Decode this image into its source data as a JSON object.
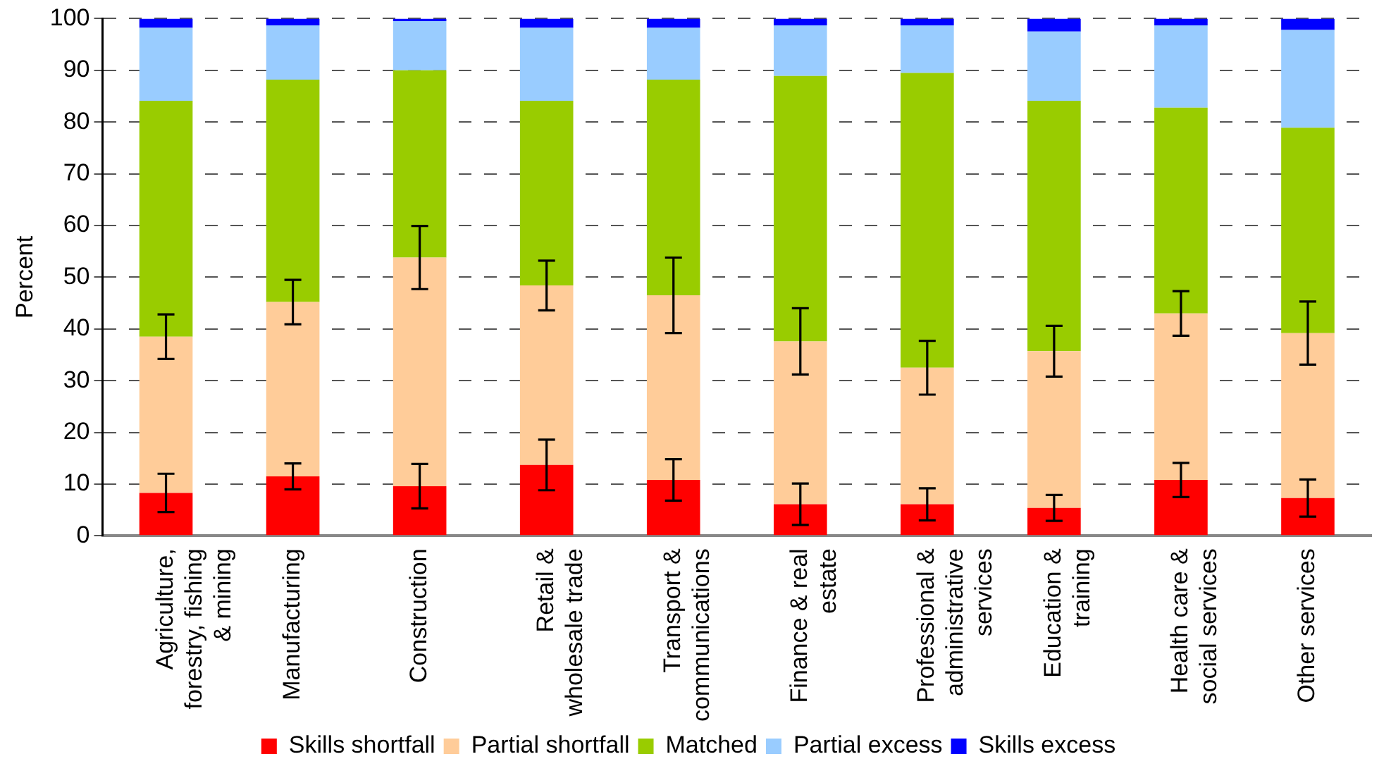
{
  "chart_data": {
    "type": "bar",
    "stacked": true,
    "ylabel": "Percent",
    "categories": [
      "Agriculture, forestry, fishing & mining",
      "Manufacturing",
      "Construction",
      "Retail & wholesale trade",
      "Transport & communications",
      "Finance & real estate",
      "Professional & administrative services",
      "Education & training",
      "Health care & social services",
      "Other services"
    ],
    "series": [
      {
        "name": "Skills shortfall",
        "color": "#ff0000",
        "values": [
          8.3,
          11.5,
          9.6,
          13.7,
          10.8,
          6.1,
          6.1,
          5.4,
          10.8,
          7.3
        ],
        "errors": [
          3.7,
          2.5,
          4.3,
          4.9,
          4,
          4,
          3.1,
          2.5,
          3.3,
          3.6
        ]
      },
      {
        "name": "Partial shortfall",
        "color": "#ffcc99",
        "values": [
          30.2,
          33.7,
          44.2,
          34.7,
          35.7,
          31.5,
          26.4,
          30.3,
          32.2,
          31.9
        ],
        "errors": [
          4.3,
          4.3,
          6.1,
          4.8,
          7.3,
          6.4,
          5.2,
          4.9,
          4.3,
          6.1
        ]
      },
      {
        "name": "Matched",
        "color": "#99cc00",
        "values": [
          45.6,
          43.0,
          36.2,
          35.7,
          41.7,
          51.3,
          57.0,
          48.4,
          39.8,
          39.7
        ]
      },
      {
        "name": "Partial excess",
        "color": "#99ccff",
        "values": [
          14.1,
          10.5,
          9.5,
          14.1,
          10.0,
          9.8,
          9.2,
          13.4,
          15.9,
          18.9
        ]
      },
      {
        "name": "Skills excess",
        "color": "#0000ff",
        "values": [
          1.8,
          1.3,
          0.5,
          1.8,
          1.8,
          1.3,
          1.3,
          2.5,
          1.3,
          2.2
        ]
      }
    ],
    "ylim": [
      0,
      100
    ],
    "yticks": [
      0,
      10,
      20,
      30,
      40,
      50,
      60,
      70,
      80,
      90,
      100
    ],
    "grid": "y",
    "legend": "bottom"
  }
}
